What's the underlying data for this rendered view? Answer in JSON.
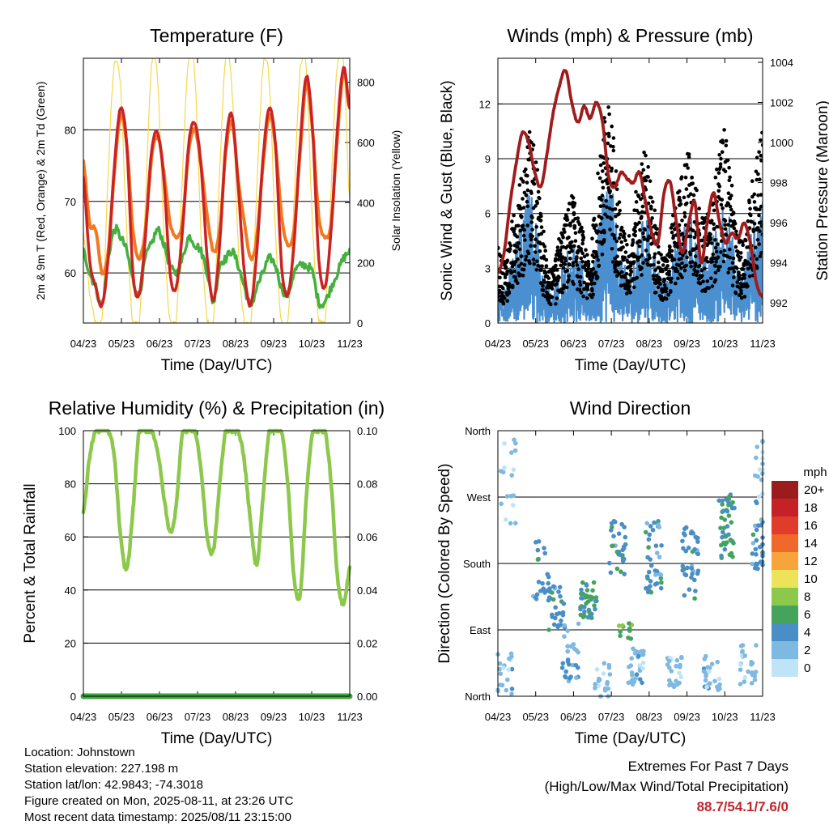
{
  "colors": {
    "temp_2m": "#cc2222",
    "temp_9m": "#f07a20",
    "dewpoint": "#44b040",
    "solar": "#f5d84a",
    "wind": "#4a90d0",
    "gust": "#000000",
    "pressure": "#a01c1c",
    "rh": "#8cc84b",
    "precip": "#3da33d",
    "extremes": "#c0272d"
  },
  "info": {
    "location": "Location: Johnstown",
    "elevation": "Station elevation: 227.198 m",
    "latlon": "Station lat/lon: 42.9843; -74.3018",
    "created": "Figure created on Mon, 2025-08-11, at 23:26 UTC",
    "recent": "Most recent data timestamp: 2025/08/11 23:15:00"
  },
  "extremes": {
    "title": "Extremes For Past 7 Days",
    "subtitle": "(High/Low/Max Wind/Total Precipitation)",
    "value": "88.7/54.1/7.6/0"
  },
  "chart_data": [
    {
      "id": "temperature",
      "type": "line",
      "title": "Temperature (F)",
      "xlabel": "Time (Day/UTC)",
      "ylabel": "2m & 9m T (Red, Orange) & 2m Td (Green)",
      "y2label": "Solar Insolation (Yellow)",
      "x_ticks": [
        "04/23",
        "05/23",
        "06/23",
        "07/23",
        "08/23",
        "09/23",
        "10/23",
        "11/23"
      ],
      "ylim": [
        53,
        90
      ],
      "y_ticks": [
        60,
        70,
        80
      ],
      "y2lim": [
        0,
        880
      ],
      "y2_ticks": [
        0,
        200,
        400,
        600,
        800
      ],
      "grid": true,
      "series": [
        {
          "key": "temp_2m",
          "values": [
            73.5,
            62,
            58,
            55.5,
            62,
            75,
            83,
            78,
            60,
            57,
            65,
            77,
            79.5,
            73,
            60,
            58,
            66,
            78,
            81,
            75,
            62,
            56,
            64,
            78,
            82,
            72,
            60,
            55.5,
            63,
            76,
            83,
            78,
            61,
            57,
            64,
            78,
            87.5,
            80,
            62,
            58,
            66,
            80,
            88.7,
            83
          ]
        },
        {
          "key": "temp_9m",
          "values": [
            75.5,
            67,
            66,
            60,
            63,
            74,
            82,
            78,
            66,
            62,
            66,
            76,
            79,
            74,
            67,
            65,
            67,
            77,
            80,
            75,
            68,
            63,
            66,
            77,
            81,
            73,
            67,
            62,
            65,
            75,
            82,
            78,
            68,
            64,
            66,
            77,
            86.5,
            80,
            68,
            65,
            67,
            79,
            88,
            83
          ]
        },
        {
          "key": "dewpoint",
          "values": [
            63,
            60,
            58,
            55.5,
            62,
            66,
            65,
            63,
            59,
            57,
            62,
            64,
            66,
            64,
            61,
            60,
            62,
            65,
            64,
            63,
            60,
            56,
            61,
            62,
            63,
            61,
            58,
            55.5,
            58,
            60,
            62,
            61,
            58,
            57,
            60,
            61,
            61,
            60,
            56,
            56,
            58,
            60,
            62,
            63
          ]
        },
        {
          "key": "solar",
          "values": [
            300,
            100,
            0,
            0,
            500,
            860,
            780,
            300,
            0,
            0,
            400,
            860,
            800,
            300,
            0,
            0,
            500,
            880,
            820,
            300,
            0,
            0,
            500,
            890,
            780,
            250,
            0,
            0,
            450,
            850,
            800,
            300,
            0,
            0,
            400,
            840,
            830,
            320,
            0,
            0,
            450,
            860,
            870,
            400
          ]
        }
      ]
    },
    {
      "id": "winds",
      "type": "line",
      "title": "Winds (mph) & Pressure (mb)",
      "xlabel": "Time (Day/UTC)",
      "ylabel": "Sonic Wind & Gust (Blue, Black)",
      "y2label": "Station Pressure (Maroon)",
      "x_ticks": [
        "04/23",
        "05/23",
        "06/23",
        "07/23",
        "08/23",
        "09/23",
        "10/23",
        "11/23"
      ],
      "ylim": [
        0,
        14.5
      ],
      "y_ticks": [
        0,
        3,
        6,
        9,
        12
      ],
      "y2lim": [
        991,
        1004.2
      ],
      "y2_ticks": [
        992,
        994,
        996,
        998,
        1000,
        1002,
        1004
      ],
      "grid": true,
      "series": [
        {
          "key": "pressure",
          "values": [
            993.5,
            994.5,
            997,
            999,
            1000.5,
            1000,
            998.5,
            997.8,
            999.5,
            1001.5,
            1002.8,
            1003.6,
            1002,
            1001,
            1001.8,
            1001.2,
            1002,
            1001,
            998.3,
            997.8,
            998.5,
            998.2,
            998,
            998.5,
            997,
            995.5,
            995,
            997.5,
            998,
            996,
            994.5,
            996,
            997,
            994,
            996,
            997.5,
            996,
            995,
            995.5,
            995.2,
            996,
            995,
            993,
            992.3
          ]
        },
        {
          "key": "gust_amplitude",
          "values": [
            3.5,
            3,
            4,
            6,
            7,
            9,
            8,
            5,
            3,
            2.5,
            4,
            5,
            6,
            5,
            4,
            3,
            6,
            9,
            10,
            8,
            5,
            4,
            5,
            7,
            8,
            6,
            4,
            3,
            4,
            6,
            7,
            8,
            7,
            5,
            5,
            6,
            8,
            9,
            6,
            4,
            4,
            6,
            8,
            9
          ]
        },
        {
          "key": "wind_amplitude",
          "values": [
            2,
            1.8,
            2.5,
            4,
            4.5,
            6,
            5,
            3,
            1.8,
            1.5,
            2.5,
            3,
            4,
            3,
            2.5,
            2,
            3.5,
            6,
            7,
            5,
            3,
            2.5,
            3,
            4,
            5,
            4,
            2.5,
            2,
            2.5,
            4,
            4.5,
            5,
            4.5,
            3,
            3,
            4,
            5,
            6,
            4,
            2.5,
            2.5,
            4,
            5,
            6
          ]
        }
      ]
    },
    {
      "id": "humidity",
      "type": "line",
      "title": "Relative Humidity (%) & Precipitation (in)",
      "xlabel": "Time (Day/UTC)",
      "ylabel": "Percent & Total Rainfall",
      "x_ticks": [
        "04/23",
        "05/23",
        "06/23",
        "07/23",
        "08/23",
        "09/23",
        "10/23",
        "11/23"
      ],
      "ylim": [
        0,
        100
      ],
      "y_ticks": [
        0,
        20,
        40,
        60,
        80,
        100
      ],
      "y2lim": [
        0,
        0.1
      ],
      "y2_ticks": [
        "0.00",
        "0.02",
        "0.04",
        "0.06",
        "0.08",
        "0.10"
      ],
      "grid": true,
      "series": [
        {
          "key": "rh",
          "values": [
            69,
            90,
            100,
            100,
            100,
            90,
            60,
            48,
            70,
            100,
            100,
            100,
            92,
            75,
            62,
            72,
            100,
            100,
            100,
            85,
            60,
            55,
            80,
            100,
            100,
            100,
            88,
            65,
            50,
            75,
            100,
            100,
            100,
            80,
            45,
            38,
            75,
            100,
            100,
            100,
            80,
            45,
            35,
            48
          ]
        },
        {
          "key": "precip",
          "values": [
            0,
            0,
            0,
            0,
            0,
            0,
            0,
            0,
            0,
            0,
            0,
            0,
            0,
            0,
            0,
            0,
            0,
            0,
            0,
            0,
            0,
            0,
            0,
            0,
            0,
            0,
            0,
            0,
            0,
            0,
            0,
            0,
            0,
            0,
            0,
            0,
            0,
            0,
            0,
            0,
            0,
            0,
            0,
            0
          ]
        }
      ]
    },
    {
      "id": "direction",
      "type": "scatter",
      "title": "Wind Direction",
      "xlabel": "Time (Day/UTC)",
      "ylabel": "Direction (Colored By Speed)",
      "x_ticks": [
        "04/23",
        "05/23",
        "06/23",
        "07/23",
        "08/23",
        "09/23",
        "10/23",
        "11/23"
      ],
      "y_ticks": [
        "North",
        "East",
        "South",
        "West",
        "North"
      ],
      "ylim": [
        0,
        360
      ],
      "legend": {
        "title": "mph",
        "position": "right",
        "labels": [
          "20+",
          "18",
          "16",
          "14",
          "12",
          "10",
          "8",
          "6",
          "4",
          "2",
          "0"
        ],
        "colors": [
          "#9b1c1c",
          "#c42227",
          "#e03b2b",
          "#f0692b",
          "#f8a43c",
          "#ece35a",
          "#8cc84b",
          "#45a35c",
          "#4a8ec7",
          "#7eb9e2",
          "#bfe4f7"
        ]
      },
      "clusters": [
        {
          "day": 0.2,
          "dir": 30,
          "spread": 30,
          "count": 20,
          "speed": 2
        },
        {
          "day": 0.3,
          "dir": 290,
          "spread": 60,
          "count": 18,
          "speed": 1
        },
        {
          "day": 1.2,
          "dir": 170,
          "spread": 40,
          "count": 22,
          "speed": 4
        },
        {
          "day": 1.6,
          "dir": 120,
          "spread": 30,
          "count": 28,
          "speed": 4
        },
        {
          "day": 2.0,
          "dir": 60,
          "spread": 40,
          "count": 28,
          "speed": 3
        },
        {
          "day": 2.5,
          "dir": 130,
          "spread": 25,
          "count": 40,
          "speed": 5
        },
        {
          "day": 2.9,
          "dir": 20,
          "spread": 25,
          "count": 20,
          "speed": 2
        },
        {
          "day": 3.3,
          "dir": 200,
          "spread": 40,
          "count": 30,
          "speed": 4
        },
        {
          "day": 3.5,
          "dir": 90,
          "spread": 20,
          "count": 12,
          "speed": 6
        },
        {
          "day": 3.8,
          "dir": 40,
          "spread": 25,
          "count": 30,
          "speed": 2
        },
        {
          "day": 4.3,
          "dir": 190,
          "spread": 50,
          "count": 40,
          "speed": 4
        },
        {
          "day": 4.9,
          "dir": 30,
          "spread": 25,
          "count": 25,
          "speed": 2
        },
        {
          "day": 5.3,
          "dir": 180,
          "spread": 50,
          "count": 38,
          "speed": 4
        },
        {
          "day": 5.9,
          "dir": 30,
          "spread": 25,
          "count": 25,
          "speed": 2
        },
        {
          "day": 6.3,
          "dir": 230,
          "spread": 45,
          "count": 45,
          "speed": 5
        },
        {
          "day": 6.9,
          "dir": 40,
          "spread": 30,
          "count": 25,
          "speed": 2
        },
        {
          "day": 7.2,
          "dir": 220,
          "spread": 50,
          "count": 30,
          "speed": 4
        },
        {
          "day": 7.3,
          "dir": 310,
          "spread": 40,
          "count": 15,
          "speed": 1
        }
      ]
    }
  ]
}
